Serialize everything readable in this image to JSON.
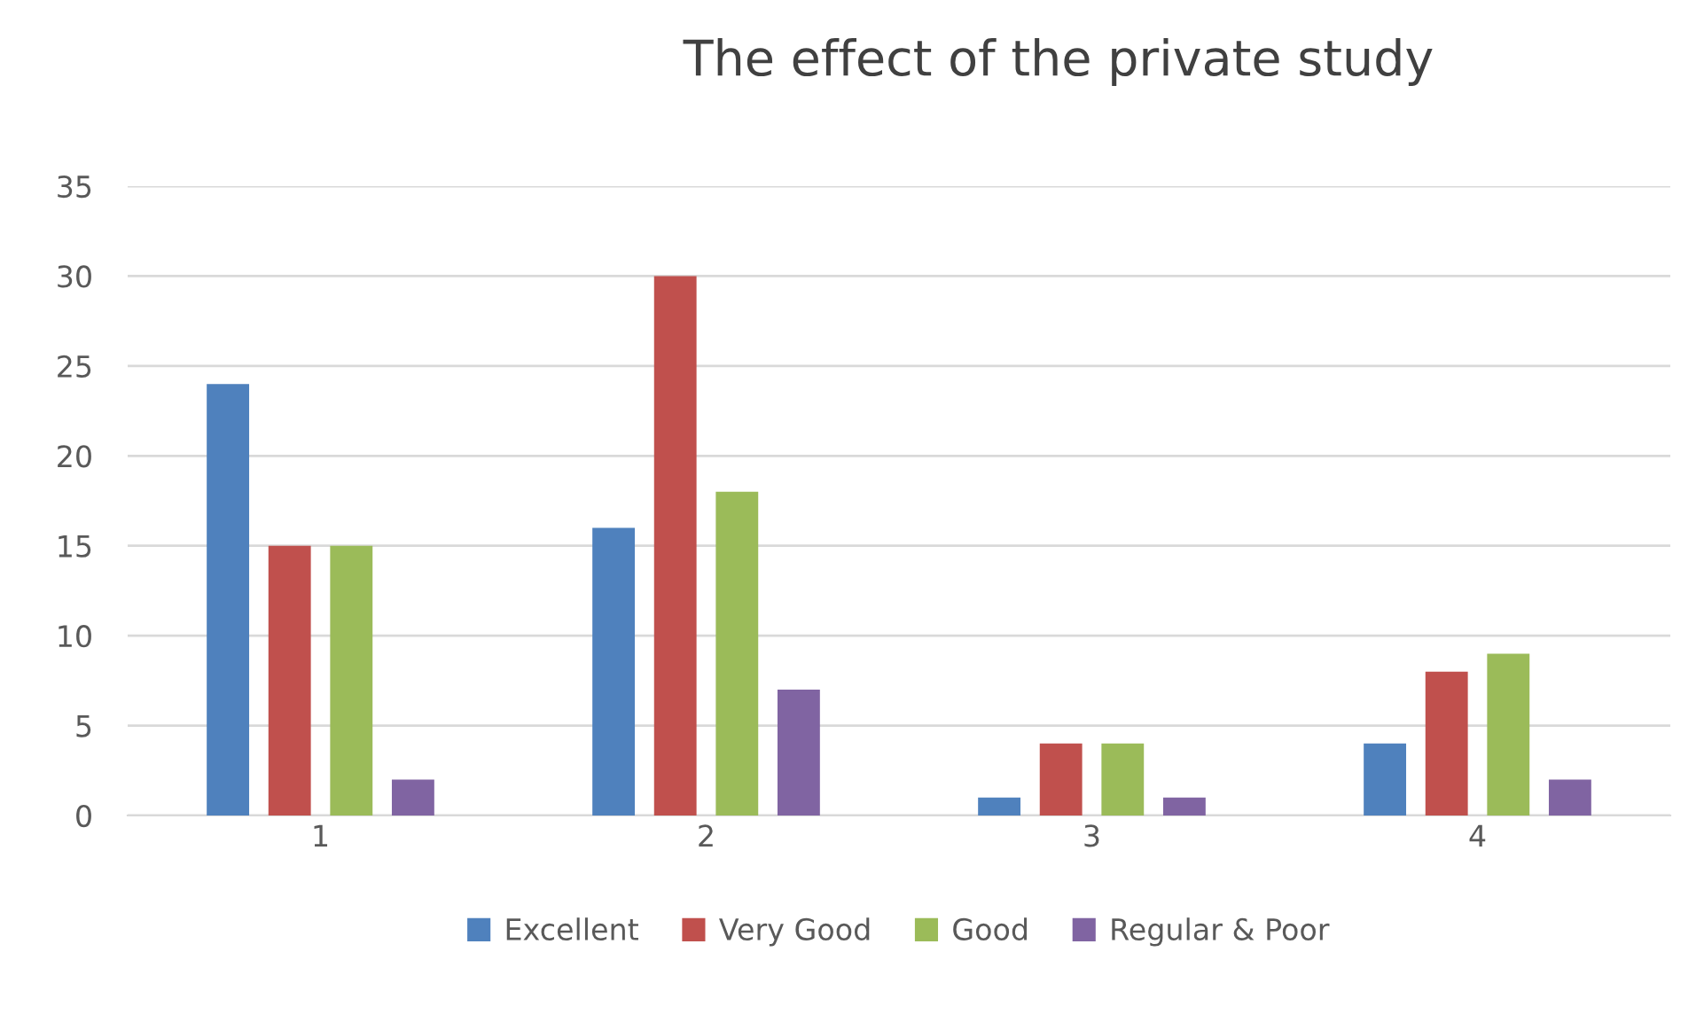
{
  "chart_data": {
    "type": "bar",
    "title": "The effect of the private study",
    "categories": [
      "1",
      "2",
      "3",
      "4"
    ],
    "series": [
      {
        "name": "Excellent",
        "color": "#4f81bd",
        "values": [
          24,
          16,
          1,
          4
        ]
      },
      {
        "name": "Very Good",
        "color": "#c0504d",
        "values": [
          15,
          30,
          4,
          8
        ]
      },
      {
        "name": "Good",
        "color": "#9bbb59",
        "values": [
          15,
          18,
          4,
          9
        ]
      },
      {
        "name": "Regular & Poor",
        "color": "#8064a2",
        "values": [
          2,
          7,
          1,
          2
        ]
      }
    ],
    "ylim": [
      0,
      35
    ],
    "yticks": [
      0,
      5,
      10,
      15,
      20,
      25,
      30,
      35
    ],
    "grid": "y",
    "legend": "bottom"
  }
}
